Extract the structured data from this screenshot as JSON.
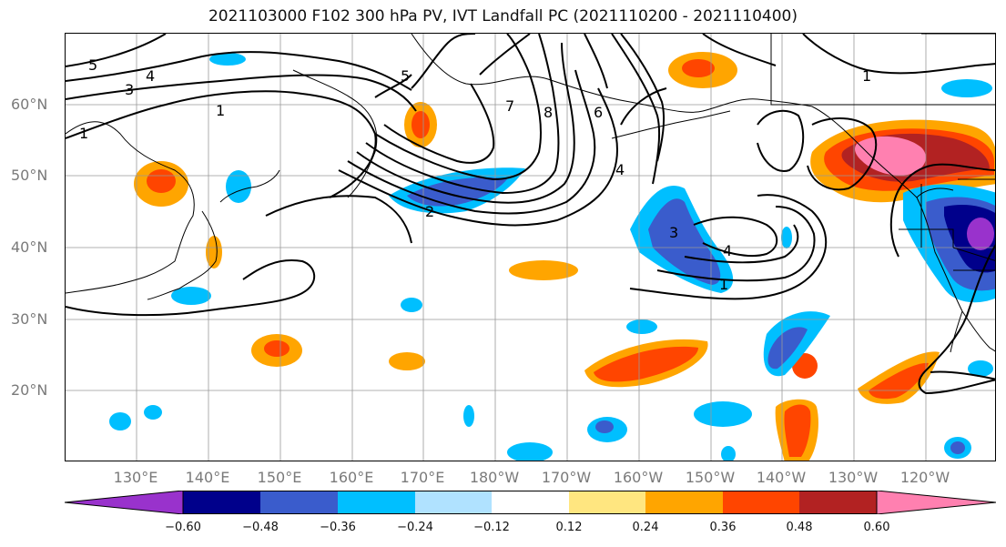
{
  "title": "2021103000 F102 300 hPa PV, IVT Landfall PC (2021110200 - 2021110400)",
  "lat_labels": [
    "60°N",
    "50°N",
    "40°N",
    "30°N",
    "20°N"
  ],
  "lon_labels": [
    "130°E",
    "140°E",
    "150°E",
    "160°E",
    "170°E",
    "180°W",
    "170°W",
    "160°W",
    "150°W",
    "140°W",
    "130°W",
    "120°W"
  ],
  "contour_labels": [
    "5",
    "4",
    "3",
    "1",
    "1",
    "5",
    "7",
    "8",
    "6",
    "4",
    "2",
    "3",
    "4",
    "1",
    "1"
  ],
  "colorbar": {
    "ticks": [
      "−0.60",
      "−0.48",
      "−0.36",
      "−0.24",
      "−0.12",
      "0.12",
      "0.24",
      "0.36",
      "0.48",
      "0.60"
    ],
    "colors": [
      "#9932cc",
      "#00008b",
      "#3a5ccc",
      "#00bfff",
      "#b0e2ff",
      "#ffffff",
      "#ffe680",
      "#ffa500",
      "#ff4500",
      "#b22222",
      "#ff80b0"
    ]
  },
  "shading_colors": {
    "pink": "#ff80b0",
    "darkred": "#b22222",
    "red": "#ff4500",
    "orange": "#ffa500",
    "yellow": "#ffe680",
    "lightblue": "#b0e2ff",
    "cyan": "#00bfff",
    "blue": "#3a5ccc",
    "navy": "#00008b",
    "purple": "#9932cc"
  }
}
